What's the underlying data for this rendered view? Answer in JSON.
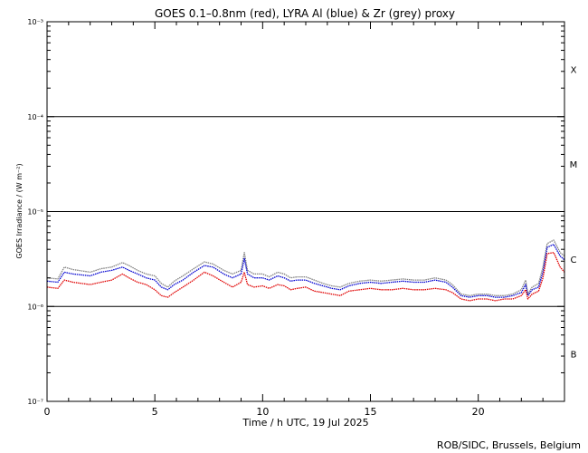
{
  "chart_data": {
    "type": "line",
    "title": "GOES 0.1–0.8nm (red), LYRA Al (blue) & Zr (grey) proxy",
    "xlabel": "Time / h UTC, 19 Jul 2025",
    "ylabel": "GOES Irradiance / (W m⁻²)",
    "xlim": [
      0,
      24
    ],
    "ylim": [
      1e-07,
      0.001
    ],
    "yscale": "log",
    "x_ticks": [
      0,
      5,
      10,
      15,
      20
    ],
    "y_ticks": [
      {
        "value": 1e-07,
        "label": "10⁻⁷"
      },
      {
        "value": 1e-06,
        "label": "10⁻⁶"
      },
      {
        "value": 1e-05,
        "label": "10⁻⁵"
      },
      {
        "value": 0.0001,
        "label": "10⁻⁴"
      },
      {
        "value": 0.001,
        "label": "10⁻³"
      }
    ],
    "flare_classes": [
      {
        "label": "X",
        "y": 0.000316
      },
      {
        "label": "M",
        "y": 3.16e-05
      },
      {
        "label": "C",
        "y": 3.16e-06
      },
      {
        "label": "B",
        "y": 3.16e-07
      }
    ],
    "class_lines": [
      1e-06,
      1e-05,
      0.0001
    ],
    "x": [
      0,
      0.5,
      0.8,
      1.2,
      2.0,
      2.5,
      3.0,
      3.5,
      3.8,
      4.2,
      4.6,
      5.0,
      5.3,
      5.6,
      5.9,
      6.3,
      6.8,
      7.3,
      7.7,
      8.2,
      8.6,
      9.0,
      9.15,
      9.3,
      9.6,
      10.0,
      10.3,
      10.7,
      11.0,
      11.3,
      11.6,
      12.0,
      12.4,
      12.8,
      13.2,
      13.6,
      14.0,
      14.5,
      15.0,
      15.5,
      16.0,
      16.5,
      17.0,
      17.5,
      18.0,
      18.5,
      18.8,
      19.2,
      19.6,
      20.0,
      20.4,
      20.8,
      21.2,
      21.6,
      22.0,
      22.2,
      22.3,
      22.5,
      22.8,
      23.0,
      23.2,
      23.5,
      23.8,
      24.0
    ],
    "series": [
      {
        "name": "GOES 0.1–0.8nm",
        "color": "#e00000",
        "values": [
          1.6e-06,
          1.55e-06,
          1.9e-06,
          1.8e-06,
          1.7e-06,
          1.8e-06,
          1.9e-06,
          2.2e-06,
          2e-06,
          1.8e-06,
          1.7e-06,
          1.5e-06,
          1.3e-06,
          1.25e-06,
          1.4e-06,
          1.6e-06,
          1.9e-06,
          2.3e-06,
          2.1e-06,
          1.8e-06,
          1.6e-06,
          1.8e-06,
          2.3e-06,
          1.7e-06,
          1.6e-06,
          1.65e-06,
          1.55e-06,
          1.7e-06,
          1.65e-06,
          1.5e-06,
          1.55e-06,
          1.6e-06,
          1.45e-06,
          1.4e-06,
          1.35e-06,
          1.3e-06,
          1.45e-06,
          1.5e-06,
          1.55e-06,
          1.5e-06,
          1.5e-06,
          1.55e-06,
          1.5e-06,
          1.5e-06,
          1.55e-06,
          1.5e-06,
          1.4e-06,
          1.2e-06,
          1.15e-06,
          1.2e-06,
          1.2e-06,
          1.15e-06,
          1.2e-06,
          1.2e-06,
          1.3e-06,
          1.5e-06,
          1.2e-06,
          1.35e-06,
          1.45e-06,
          2e-06,
          3.6e-06,
          3.7e-06,
          2.6e-06,
          2.3e-06
        ]
      },
      {
        "name": "LYRA Al proxy",
        "color": "#0000d0",
        "values": [
          1.85e-06,
          1.8e-06,
          2.3e-06,
          2.2e-06,
          2.1e-06,
          2.3e-06,
          2.4e-06,
          2.6e-06,
          2.4e-06,
          2.2e-06,
          2e-06,
          1.9e-06,
          1.6e-06,
          1.5e-06,
          1.7e-06,
          1.9e-06,
          2.3e-06,
          2.7e-06,
          2.6e-06,
          2.2e-06,
          2e-06,
          2.2e-06,
          3.2e-06,
          2.2e-06,
          2e-06,
          2e-06,
          1.9e-06,
          2.1e-06,
          2e-06,
          1.85e-06,
          1.9e-06,
          1.9e-06,
          1.75e-06,
          1.65e-06,
          1.55e-06,
          1.5e-06,
          1.65e-06,
          1.75e-06,
          1.8e-06,
          1.75e-06,
          1.8e-06,
          1.85e-06,
          1.8e-06,
          1.8e-06,
          1.9e-06,
          1.8e-06,
          1.6e-06,
          1.3e-06,
          1.25e-06,
          1.3e-06,
          1.3e-06,
          1.25e-06,
          1.25e-06,
          1.3e-06,
          1.4e-06,
          1.7e-06,
          1.3e-06,
          1.5e-06,
          1.6e-06,
          2.3e-06,
          4.2e-06,
          4.5e-06,
          3.4e-06,
          3.1e-06
        ]
      },
      {
        "name": "LYRA Zr proxy",
        "color": "#808080",
        "values": [
          2e-06,
          1.95e-06,
          2.6e-06,
          2.45e-06,
          2.3e-06,
          2.5e-06,
          2.6e-06,
          2.9e-06,
          2.7e-06,
          2.4e-06,
          2.2e-06,
          2.1e-06,
          1.75e-06,
          1.6e-06,
          1.85e-06,
          2.1e-06,
          2.5e-06,
          2.95e-06,
          2.8e-06,
          2.4e-06,
          2.2e-06,
          2.4e-06,
          3.7e-06,
          2.4e-06,
          2.2e-06,
          2.2e-06,
          2.05e-06,
          2.3e-06,
          2.2e-06,
          2e-06,
          2.05e-06,
          2.05e-06,
          1.9e-06,
          1.75e-06,
          1.65e-06,
          1.6e-06,
          1.75e-06,
          1.85e-06,
          1.9e-06,
          1.85e-06,
          1.9e-06,
          1.95e-06,
          1.9e-06,
          1.9e-06,
          2e-06,
          1.9e-06,
          1.7e-06,
          1.35e-06,
          1.3e-06,
          1.35e-06,
          1.35e-06,
          1.3e-06,
          1.3e-06,
          1.35e-06,
          1.5e-06,
          1.9e-06,
          1.35e-06,
          1.6e-06,
          1.75e-06,
          2.6e-06,
          4.6e-06,
          5e-06,
          3.7e-06,
          3.4e-06
        ]
      }
    ],
    "grid": false
  },
  "footer": "ROB/SIDC, Brussels, Belgium"
}
